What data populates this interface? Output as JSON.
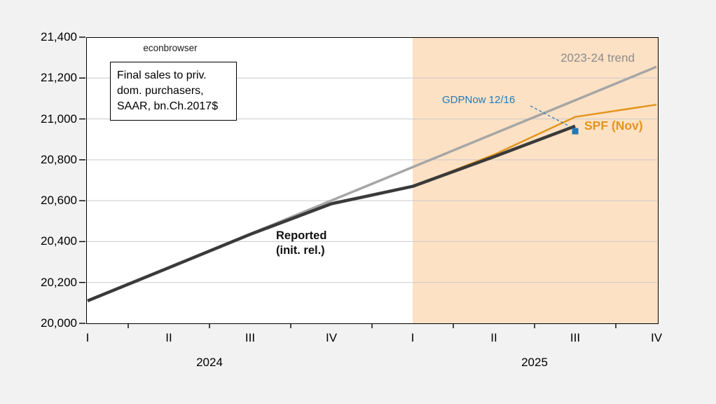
{
  "canvas": {
    "background": "#F2F2F2"
  },
  "watermark": {
    "text": "econbrowser"
  },
  "annotation_box": {
    "line1": "Final sales to priv.",
    "line2": "dom. purchasers,",
    "line3": "SAAR, bn.Ch.2017$"
  },
  "annotations": {
    "trend_label": "2023-24 trend",
    "gdpnow_label": "GDPNow 12/16",
    "spf_label": "SPF (Nov)",
    "reported_label_line1": "Reported",
    "reported_label_line2": "(init. rel.)"
  },
  "colors": {
    "trend_line": "#A6A6A6",
    "trend_label": "#8C8C8C",
    "reported_line": "#3A3A3A",
    "spf_line": "#E2951D",
    "gdpnow_blue": "#1F7AB8",
    "forecast_shade": "#FDE1C4",
    "gridline": "#C9C9C9",
    "axis": "#000000"
  },
  "chart_data": {
    "type": "line",
    "title": "",
    "note": "Final sales to priv. dom. purchasers, SAAR, bn.Ch.2017$",
    "watermark": "econbrowser",
    "categories": [
      "2024Q1",
      "2024Q2",
      "2024Q3",
      "2024Q4",
      "2025Q1",
      "2025Q2",
      "2025Q3",
      "2025Q4"
    ],
    "x_axis": {
      "quarter_labels": [
        "I",
        "II",
        "III",
        "IV",
        "I",
        "II",
        "III",
        "IV"
      ],
      "year_labels": [
        "2024",
        "2025"
      ]
    },
    "y_axis": {
      "min": 20000,
      "max": 21400,
      "step": 200,
      "tick_labels": [
        "20,000",
        "20,200",
        "20,400",
        "20,600",
        "20,800",
        "21,000",
        "21,200",
        "21,400"
      ],
      "grid": true
    },
    "series": [
      {
        "name": "2023-24 trend",
        "color": "#A6A6A6",
        "points": [
          {
            "c": "2024Q1",
            "v": 20110
          },
          {
            "c": "2025Q4",
            "v": 21255
          }
        ]
      },
      {
        "name": "SPF (Nov)",
        "color": "#E2951D",
        "points": [
          {
            "c": "2025Q1",
            "v": 20670
          },
          {
            "c": "2025Q2",
            "v": 20825
          },
          {
            "c": "2025Q3",
            "v": 21010
          },
          {
            "c": "2025Q4",
            "v": 21070
          }
        ]
      },
      {
        "name": "Reported (init. rel.)",
        "color": "#3A3A3A",
        "points": [
          {
            "c": "2024Q1",
            "v": 20110
          },
          {
            "c": "2024Q2",
            "v": 20272
          },
          {
            "c": "2024Q3",
            "v": 20435
          },
          {
            "c": "2024Q4",
            "v": 20585
          },
          {
            "c": "2025Q1",
            "v": 20670
          },
          {
            "c": "2025Q2",
            "v": 20815
          },
          {
            "c": "2025Q3",
            "v": 20965
          }
        ]
      }
    ],
    "markers": [
      {
        "name": "GDPNow 12/16",
        "shape": "square",
        "color": "#1F7AB8",
        "c": "2025Q3",
        "v": 20940
      }
    ],
    "shaded_region": {
      "from": "2025Q1",
      "to_axis_end": true,
      "color": "#FDE1C4",
      "meaning": "forecast period"
    },
    "legend_position": "inline-labels"
  }
}
